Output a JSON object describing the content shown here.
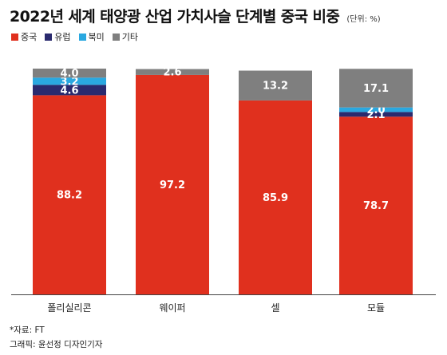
{
  "title": "2022년 세계 태양광 산업 가치사슬 단계별 중국 비중",
  "unit": "(단위: %)",
  "colors": {
    "중국": "#e0301e",
    "유럽": "#2a2a6e",
    "북미": "#2aa8e0",
    "기타": "#7f7f7f"
  },
  "legend": [
    "중국",
    "유럽",
    "북미",
    "기타"
  ],
  "chart_data": {
    "type": "bar",
    "stacked": true,
    "categories": [
      "폴리실리콘",
      "웨이퍼",
      "셀",
      "모듈"
    ],
    "series": [
      {
        "name": "중국",
        "values": [
          88.2,
          97.2,
          85.9,
          78.7
        ]
      },
      {
        "name": "유럽",
        "values": [
          4.6,
          null,
          null,
          2.1
        ]
      },
      {
        "name": "북미",
        "values": [
          3.2,
          null,
          null,
          2.0
        ]
      },
      {
        "name": "기타",
        "values": [
          4.0,
          2.6,
          13.2,
          17.1
        ]
      }
    ],
    "ylim": [
      0,
      100
    ],
    "grid": false,
    "legend_position": "top-left"
  },
  "source": "*자료: FT",
  "credit": "그래픽: 윤선정 디자인기자"
}
